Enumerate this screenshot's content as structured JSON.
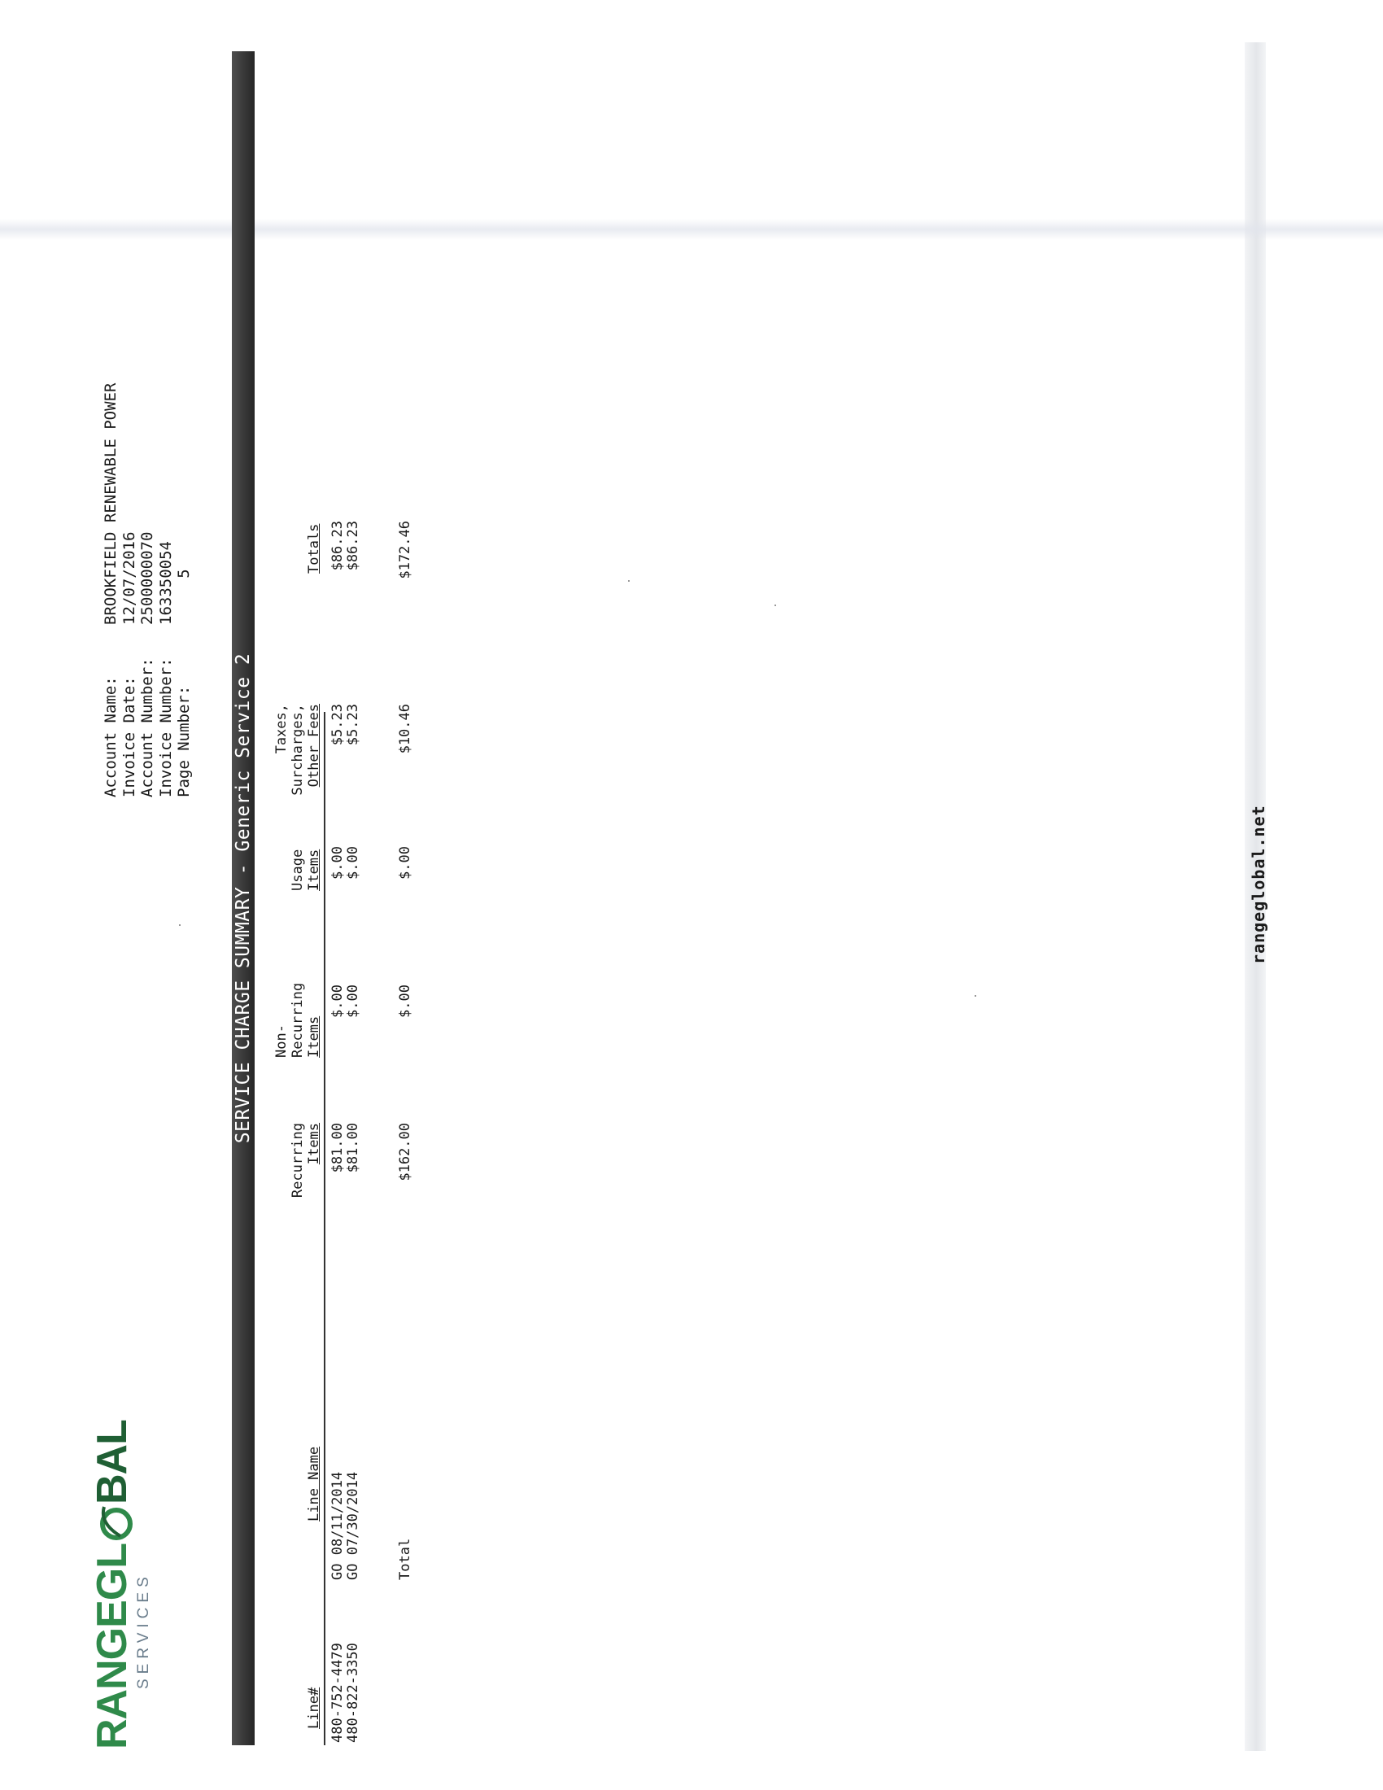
{
  "logo": {
    "brand_main": "RANGEGL",
    "brand_end": "BAL",
    "sub": "SERVICES"
  },
  "account": {
    "rows": [
      {
        "label": "Account Name:",
        "value": "BROOKFIELD RENEWABLE POWER"
      },
      {
        "label": "Invoice Date:",
        "value": "12/07/2016"
      },
      {
        "label": "Account Number:",
        "value": "2500000070"
      },
      {
        "label": "Invoice Number:",
        "value": "163350054"
      },
      {
        "label": "Page Number:",
        "value": "     5"
      }
    ]
  },
  "section_title": "SERVICE CHARGE SUMMARY - Generic Service 2",
  "table": {
    "headers": {
      "line": "Line#",
      "line_name": "Line Name",
      "recurring_1": "Recurring",
      "recurring_2": "Items",
      "nonrec_1": "Non-",
      "nonrec_2": "Recurring",
      "nonrec_3": "Items",
      "usage_1": "Usage",
      "usage_2": "Items",
      "taxes_1": "Taxes,",
      "taxes_2": "Surcharges,",
      "taxes_3": "Other Fees",
      "totals": "Totals"
    },
    "rows": [
      {
        "line": "480-752-4479",
        "line_name": "GO 08/11/2014",
        "recurring": "$81.00",
        "nonrec": "$.00",
        "usage": "$.00",
        "taxes": "$5.23",
        "total": "$86.23"
      },
      {
        "line": "480-822-3350",
        "line_name": "GO 07/30/2014",
        "recurring": "$81.00",
        "nonrec": "$.00",
        "usage": "$.00",
        "taxes": "$5.23",
        "total": "$86.23"
      }
    ],
    "total_row": {
      "label": "Total",
      "recurring": "$162.00",
      "nonrec": "$.00",
      "usage": "$.00",
      "taxes": "$10.46",
      "total": "$172.46"
    }
  },
  "footer": "rangeglobal.net",
  "colors": {
    "brand_green": "#2f8a4a",
    "brand_dark_green": "#1f5f34",
    "header_bar": "#333333"
  }
}
